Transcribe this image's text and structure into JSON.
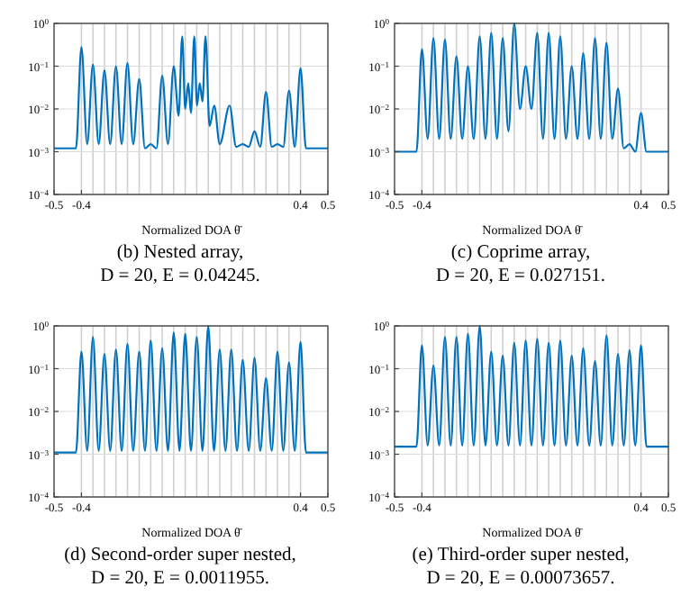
{
  "chart_data": [
    {
      "type": "line",
      "title": "(b) Nested array,",
      "subtitle": "D = 20, E = 0.04245.",
      "xlabel": "Normalized DOA θ̄",
      "color": "#0072bd",
      "log": "y",
      "grid": "y",
      "xlim": [
        -0.5,
        0.5
      ],
      "ylim": [
        0.0001,
        1
      ],
      "xticks": [
        -0.5,
        -0.4,
        0.4,
        0.5
      ],
      "yticks": [
        {
          "value": 0.0001,
          "label": "10$^{−4}$"
        },
        {
          "value": 0.001,
          "label": "10$^{−3}$"
        },
        {
          "value": 0.01,
          "label": "10$^{−2}$"
        },
        {
          "value": 0.1,
          "label": "10$^{−1}$"
        },
        {
          "value": 1,
          "label": "10$^{0}$"
        }
      ],
      "x": [
        -0.5,
        -0.42,
        -0.4,
        -0.379,
        -0.358,
        -0.337,
        -0.316,
        -0.295,
        -0.274,
        -0.253,
        -0.232,
        -0.211,
        -0.189,
        -0.168,
        -0.147,
        -0.126,
        -0.105,
        -0.084,
        -0.063,
        -0.045,
        -0.032,
        -0.021,
        -0.01,
        0,
        0.012,
        0.022,
        0.032,
        0.042,
        0.053,
        0.068,
        0.085,
        0.105,
        0.141,
        0.165,
        0.189,
        0.211,
        0.232,
        0.253,
        0.274,
        0.295,
        0.316,
        0.337,
        0.358,
        0.379,
        0.4,
        0.42,
        0.5
      ],
      "values": [
        0.0012,
        0.0012,
        0.28,
        0.0015,
        0.11,
        0.0015,
        0.08,
        0.0015,
        0.1,
        0.0015,
        0.12,
        0.0015,
        0.05,
        0.0012,
        0.0015,
        0.0012,
        0.06,
        0.0015,
        0.1,
        0.007,
        0.5,
        0.01,
        0.04,
        0.008,
        0.5,
        0.012,
        0.04,
        0.015,
        0.5,
        0.004,
        0.012,
        0.0015,
        0.012,
        0.0013,
        0.0015,
        0.0013,
        0.003,
        0.0013,
        0.025,
        0.0013,
        0.0015,
        0.0013,
        0.027,
        0.0013,
        0.09,
        0.0012,
        0.0012
      ],
      "ref_lines": [
        {
          "axis": "x",
          "value": -0.4,
          "color": "#d0d0d0"
        },
        {
          "axis": "x",
          "value": -0.358,
          "color": "#d0d0d0"
        },
        {
          "axis": "x",
          "value": -0.316,
          "color": "#d0d0d0"
        },
        {
          "axis": "x",
          "value": -0.274,
          "color": "#d0d0d0"
        },
        {
          "axis": "x",
          "value": -0.232,
          "color": "#d0d0d0"
        },
        {
          "axis": "x",
          "value": -0.189,
          "color": "#d0d0d0"
        },
        {
          "axis": "x",
          "value": -0.147,
          "color": "#d0d0d0"
        },
        {
          "axis": "x",
          "value": -0.105,
          "color": "#d0d0d0"
        },
        {
          "axis": "x",
          "value": -0.063,
          "color": "#d0d0d0"
        },
        {
          "axis": "x",
          "value": -0.021,
          "color": "#d0d0d0"
        },
        {
          "axis": "x",
          "value": 0.021,
          "color": "#d0d0d0"
        },
        {
          "axis": "x",
          "value": 0.063,
          "color": "#d0d0d0"
        },
        {
          "axis": "x",
          "value": 0.105,
          "color": "#d0d0d0"
        },
        {
          "axis": "x",
          "value": 0.147,
          "color": "#d0d0d0"
        },
        {
          "axis": "x",
          "value": 0.189,
          "color": "#d0d0d0"
        },
        {
          "axis": "x",
          "value": 0.232,
          "color": "#d0d0d0"
        },
        {
          "axis": "x",
          "value": 0.274,
          "color": "#d0d0d0"
        },
        {
          "axis": "x",
          "value": 0.316,
          "color": "#d0d0d0"
        },
        {
          "axis": "x",
          "value": 0.358,
          "color": "#d0d0d0"
        },
        {
          "axis": "x",
          "value": 0.4,
          "color": "#d0d0d0"
        }
      ]
    },
    {
      "type": "line",
      "title": "(c) Coprime array,",
      "subtitle": "D = 20, E = 0.027151.",
      "xlabel": "Normalized DOA θ̄",
      "color": "#0072bd",
      "log": "y",
      "grid": "y",
      "xlim": [
        -0.5,
        0.5
      ],
      "ylim": [
        0.0001,
        1
      ],
      "xticks": [
        -0.5,
        -0.4,
        0.4,
        0.5
      ],
      "yticks": [
        {
          "value": 0.0001,
          "label": "10$^{−4}$"
        },
        {
          "value": 0.001,
          "label": "10$^{−3}$"
        },
        {
          "value": 0.01,
          "label": "10$^{−2}$"
        },
        {
          "value": 0.1,
          "label": "10$^{−1}$"
        },
        {
          "value": 1,
          "label": "10$^{0}$"
        }
      ],
      "x": [
        -0.5,
        -0.42,
        -0.4,
        -0.379,
        -0.358,
        -0.337,
        -0.316,
        -0.295,
        -0.274,
        -0.253,
        -0.232,
        -0.211,
        -0.189,
        -0.168,
        -0.147,
        -0.126,
        -0.105,
        -0.084,
        -0.063,
        -0.042,
        -0.021,
        0,
        0.021,
        0.042,
        0.063,
        0.084,
        0.105,
        0.126,
        0.147,
        0.168,
        0.189,
        0.211,
        0.232,
        0.253,
        0.274,
        0.295,
        0.316,
        0.337,
        0.358,
        0.379,
        0.4,
        0.42,
        0.5
      ],
      "values": [
        0.001,
        0.001,
        0.25,
        0.002,
        0.45,
        0.002,
        0.42,
        0.002,
        0.17,
        0.002,
        0.1,
        0.002,
        0.5,
        0.002,
        0.6,
        0.002,
        0.45,
        0.003,
        1.0,
        0.01,
        0.1,
        0.01,
        0.6,
        0.002,
        0.6,
        0.002,
        0.5,
        0.002,
        0.1,
        0.002,
        0.2,
        0.002,
        0.45,
        0.002,
        0.35,
        0.002,
        0.03,
        0.0012,
        0.0015,
        0.001,
        0.008,
        0.001,
        0.001
      ],
      "ref_lines": [
        {
          "axis": "x",
          "value": -0.4,
          "color": "#d0d0d0"
        },
        {
          "axis": "x",
          "value": -0.358,
          "color": "#d0d0d0"
        },
        {
          "axis": "x",
          "value": -0.316,
          "color": "#d0d0d0"
        },
        {
          "axis": "x",
          "value": -0.274,
          "color": "#d0d0d0"
        },
        {
          "axis": "x",
          "value": -0.232,
          "color": "#d0d0d0"
        },
        {
          "axis": "x",
          "value": -0.189,
          "color": "#d0d0d0"
        },
        {
          "axis": "x",
          "value": -0.147,
          "color": "#d0d0d0"
        },
        {
          "axis": "x",
          "value": -0.105,
          "color": "#d0d0d0"
        },
        {
          "axis": "x",
          "value": -0.063,
          "color": "#d0d0d0"
        },
        {
          "axis": "x",
          "value": -0.021,
          "color": "#d0d0d0"
        },
        {
          "axis": "x",
          "value": 0.021,
          "color": "#d0d0d0"
        },
        {
          "axis": "x",
          "value": 0.063,
          "color": "#d0d0d0"
        },
        {
          "axis": "x",
          "value": 0.105,
          "color": "#d0d0d0"
        },
        {
          "axis": "x",
          "value": 0.147,
          "color": "#d0d0d0"
        },
        {
          "axis": "x",
          "value": 0.189,
          "color": "#d0d0d0"
        },
        {
          "axis": "x",
          "value": 0.232,
          "color": "#d0d0d0"
        },
        {
          "axis": "x",
          "value": 0.274,
          "color": "#d0d0d0"
        },
        {
          "axis": "x",
          "value": 0.316,
          "color": "#d0d0d0"
        },
        {
          "axis": "x",
          "value": 0.358,
          "color": "#d0d0d0"
        },
        {
          "axis": "x",
          "value": 0.4,
          "color": "#d0d0d0"
        }
      ]
    },
    {
      "type": "line",
      "title": "(d) Second-order super nested,",
      "subtitle": "D = 20, E = 0.0011955.",
      "xlabel": "Normalized DOA θ̄",
      "color": "#0072bd",
      "log": "y",
      "grid": "y",
      "xlim": [
        -0.5,
        0.5
      ],
      "ylim": [
        0.0001,
        1
      ],
      "xticks": [
        -0.5,
        -0.4,
        0.4,
        0.5
      ],
      "yticks": [
        {
          "value": 0.0001,
          "label": "10$^{−4}$"
        },
        {
          "value": 0.001,
          "label": "10$^{−3}$"
        },
        {
          "value": 0.01,
          "label": "10$^{−2}$"
        },
        {
          "value": 0.1,
          "label": "10$^{−1}$"
        },
        {
          "value": 1,
          "label": "10$^{0}$"
        }
      ],
      "x": [
        -0.5,
        -0.42,
        -0.4,
        -0.379,
        -0.358,
        -0.337,
        -0.316,
        -0.295,
        -0.274,
        -0.253,
        -0.232,
        -0.211,
        -0.189,
        -0.168,
        -0.147,
        -0.126,
        -0.105,
        -0.084,
        -0.063,
        -0.042,
        -0.021,
        0,
        0.021,
        0.042,
        0.063,
        0.084,
        0.105,
        0.126,
        0.147,
        0.168,
        0.189,
        0.211,
        0.232,
        0.253,
        0.274,
        0.295,
        0.316,
        0.337,
        0.358,
        0.379,
        0.4,
        0.42,
        0.5
      ],
      "values": [
        0.0011,
        0.0011,
        0.25,
        0.0012,
        0.55,
        0.0012,
        0.22,
        0.0012,
        0.28,
        0.0012,
        0.38,
        0.0012,
        0.25,
        0.0012,
        0.45,
        0.0012,
        0.3,
        0.0012,
        0.7,
        0.0012,
        0.65,
        0.0012,
        0.55,
        0.0012,
        1.0,
        0.0012,
        0.28,
        0.0012,
        0.28,
        0.0012,
        0.16,
        0.0012,
        0.18,
        0.0012,
        0.06,
        0.0012,
        0.25,
        0.0012,
        0.14,
        0.0012,
        0.42,
        0.0011,
        0.0011
      ],
      "ref_lines": [
        {
          "axis": "x",
          "value": -0.4,
          "color": "#d0d0d0"
        },
        {
          "axis": "x",
          "value": -0.358,
          "color": "#d0d0d0"
        },
        {
          "axis": "x",
          "value": -0.316,
          "color": "#d0d0d0"
        },
        {
          "axis": "x",
          "value": -0.274,
          "color": "#d0d0d0"
        },
        {
          "axis": "x",
          "value": -0.232,
          "color": "#d0d0d0"
        },
        {
          "axis": "x",
          "value": -0.189,
          "color": "#d0d0d0"
        },
        {
          "axis": "x",
          "value": -0.147,
          "color": "#d0d0d0"
        },
        {
          "axis": "x",
          "value": -0.105,
          "color": "#d0d0d0"
        },
        {
          "axis": "x",
          "value": -0.063,
          "color": "#d0d0d0"
        },
        {
          "axis": "x",
          "value": -0.021,
          "color": "#d0d0d0"
        },
        {
          "axis": "x",
          "value": 0.021,
          "color": "#d0d0d0"
        },
        {
          "axis": "x",
          "value": 0.063,
          "color": "#d0d0d0"
        },
        {
          "axis": "x",
          "value": 0.105,
          "color": "#d0d0d0"
        },
        {
          "axis": "x",
          "value": 0.147,
          "color": "#d0d0d0"
        },
        {
          "axis": "x",
          "value": 0.189,
          "color": "#d0d0d0"
        },
        {
          "axis": "x",
          "value": 0.232,
          "color": "#d0d0d0"
        },
        {
          "axis": "x",
          "value": 0.274,
          "color": "#d0d0d0"
        },
        {
          "axis": "x",
          "value": 0.316,
          "color": "#d0d0d0"
        },
        {
          "axis": "x",
          "value": 0.358,
          "color": "#d0d0d0"
        },
        {
          "axis": "x",
          "value": 0.4,
          "color": "#d0d0d0"
        }
      ]
    },
    {
      "type": "line",
      "title": "(e) Third-order super nested,",
      "subtitle": "D = 20, E = 0.00073657.",
      "xlabel": "Normalized DOA θ̄",
      "color": "#0072bd",
      "log": "y",
      "grid": "y",
      "xlim": [
        -0.5,
        0.5
      ],
      "ylim": [
        0.0001,
        1
      ],
      "xticks": [
        -0.5,
        -0.4,
        0.4,
        0.5
      ],
      "yticks": [
        {
          "value": 0.0001,
          "label": "10$^{−4}$"
        },
        {
          "value": 0.001,
          "label": "10$^{−3}$"
        },
        {
          "value": 0.01,
          "label": "10$^{−2}$"
        },
        {
          "value": 0.1,
          "label": "10$^{−1}$"
        },
        {
          "value": 1,
          "label": "10$^{0}$"
        }
      ],
      "x": [
        -0.5,
        -0.42,
        -0.4,
        -0.379,
        -0.358,
        -0.337,
        -0.316,
        -0.295,
        -0.274,
        -0.253,
        -0.232,
        -0.211,
        -0.189,
        -0.168,
        -0.147,
        -0.126,
        -0.105,
        -0.084,
        -0.063,
        -0.042,
        -0.021,
        0,
        0.021,
        0.042,
        0.063,
        0.084,
        0.105,
        0.126,
        0.147,
        0.168,
        0.189,
        0.211,
        0.232,
        0.253,
        0.274,
        0.295,
        0.316,
        0.337,
        0.358,
        0.379,
        0.4,
        0.42,
        0.5
      ],
      "values": [
        0.0015,
        0.0015,
        0.35,
        0.0016,
        0.12,
        0.0016,
        0.55,
        0.0016,
        0.55,
        0.0016,
        0.65,
        0.0016,
        1.0,
        0.0016,
        0.25,
        0.0016,
        0.2,
        0.0016,
        0.4,
        0.0016,
        0.45,
        0.0016,
        0.5,
        0.0016,
        0.4,
        0.0016,
        0.45,
        0.0016,
        0.2,
        0.0016,
        0.3,
        0.0016,
        0.15,
        0.0016,
        0.6,
        0.0016,
        0.22,
        0.0016,
        0.27,
        0.0016,
        0.35,
        0.0015,
        0.0015
      ],
      "ref_lines": [
        {
          "axis": "x",
          "value": -0.4,
          "color": "#d0d0d0"
        },
        {
          "axis": "x",
          "value": -0.358,
          "color": "#d0d0d0"
        },
        {
          "axis": "x",
          "value": -0.316,
          "color": "#d0d0d0"
        },
        {
          "axis": "x",
          "value": -0.274,
          "color": "#d0d0d0"
        },
        {
          "axis": "x",
          "value": -0.232,
          "color": "#d0d0d0"
        },
        {
          "axis": "x",
          "value": -0.189,
          "color": "#d0d0d0"
        },
        {
          "axis": "x",
          "value": -0.147,
          "color": "#d0d0d0"
        },
        {
          "axis": "x",
          "value": -0.105,
          "color": "#d0d0d0"
        },
        {
          "axis": "x",
          "value": -0.063,
          "color": "#d0d0d0"
        },
        {
          "axis": "x",
          "value": -0.021,
          "color": "#d0d0d0"
        },
        {
          "axis": "x",
          "value": 0.021,
          "color": "#d0d0d0"
        },
        {
          "axis": "x",
          "value": 0.063,
          "color": "#d0d0d0"
        },
        {
          "axis": "x",
          "value": 0.105,
          "color": "#d0d0d0"
        },
        {
          "axis": "x",
          "value": 0.147,
          "color": "#d0d0d0"
        },
        {
          "axis": "x",
          "value": 0.189,
          "color": "#d0d0d0"
        },
        {
          "axis": "x",
          "value": 0.232,
          "color": "#d0d0d0"
        },
        {
          "axis": "x",
          "value": 0.274,
          "color": "#d0d0d0"
        },
        {
          "axis": "x",
          "value": 0.316,
          "color": "#d0d0d0"
        },
        {
          "axis": "x",
          "value": 0.358,
          "color": "#d0d0d0"
        },
        {
          "axis": "x",
          "value": 0.4,
          "color": "#d0d0d0"
        }
      ]
    }
  ]
}
